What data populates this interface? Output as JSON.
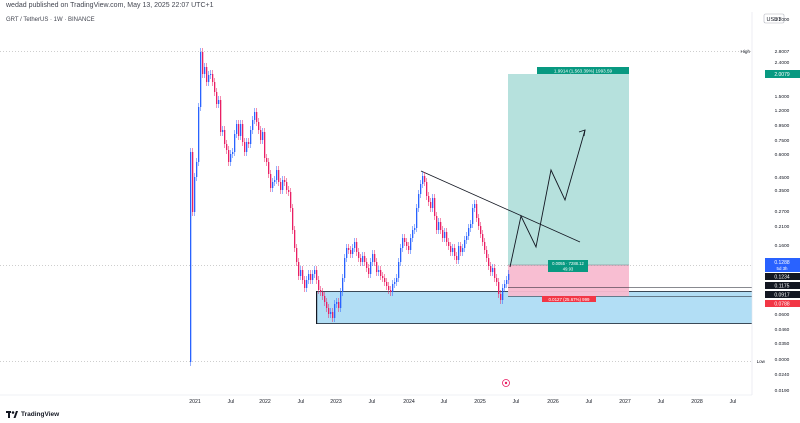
{
  "header": {
    "publish_line": "wedad published on TradingView.com, May 13, 2025 22:07 UTC+1",
    "symbol_line": "GRT / TetherUS · 1W · BINANCE"
  },
  "price_scale": {
    "currency": "USDT",
    "labels": [
      "3.2000",
      "2.8007",
      "2.4000",
      "2.0079",
      "1.5000",
      "1.2000",
      "0.9500",
      "0.7500",
      "0.6000",
      "0.4500",
      "0.3500",
      "0.2700",
      "0.2100",
      "0.1600",
      "0.1288",
      "0.1234",
      "0.1175",
      "0.0917",
      "0.0788",
      "0.0600",
      "0.0460",
      "0.0350",
      "0.0000",
      "0.0240",
      "0.0190"
    ],
    "high_label": "High",
    "low_label": "Low",
    "badges": {
      "target": "2.0079",
      "current": "0.1288",
      "countdown": "5d 3h",
      "level1": "0.1234",
      "level2": "0.1175",
      "level3": "0.0917",
      "stop": "0.0788"
    }
  },
  "time_axis": {
    "labels": [
      "2021",
      "Jul",
      "2022",
      "Jul",
      "2023",
      "Jul",
      "2024",
      "Jul",
      "2025",
      "Jul",
      "2026",
      "Jul",
      "2027",
      "Jul",
      "2028",
      "Jul"
    ]
  },
  "position": {
    "target_label": "1.9914 (1,563.39%) 1993.59",
    "entry_label": "0.0055 · 7288.12",
    "entry_sub": "49.93",
    "stop_label": "0.0127 (25.67%) 999"
  },
  "colors": {
    "profit_zone": "#b2dfdb",
    "loss_zone": "#f8bbd0",
    "support_zone": "#a5d8f3",
    "candle_up": "#2962ff",
    "candle_down": "#e91e63",
    "green_badge": "#089981",
    "red_badge": "#f23645",
    "dark_badge": "#131722",
    "blue_badge": "#2962ff"
  },
  "footer": {
    "brand": "TradingView"
  }
}
